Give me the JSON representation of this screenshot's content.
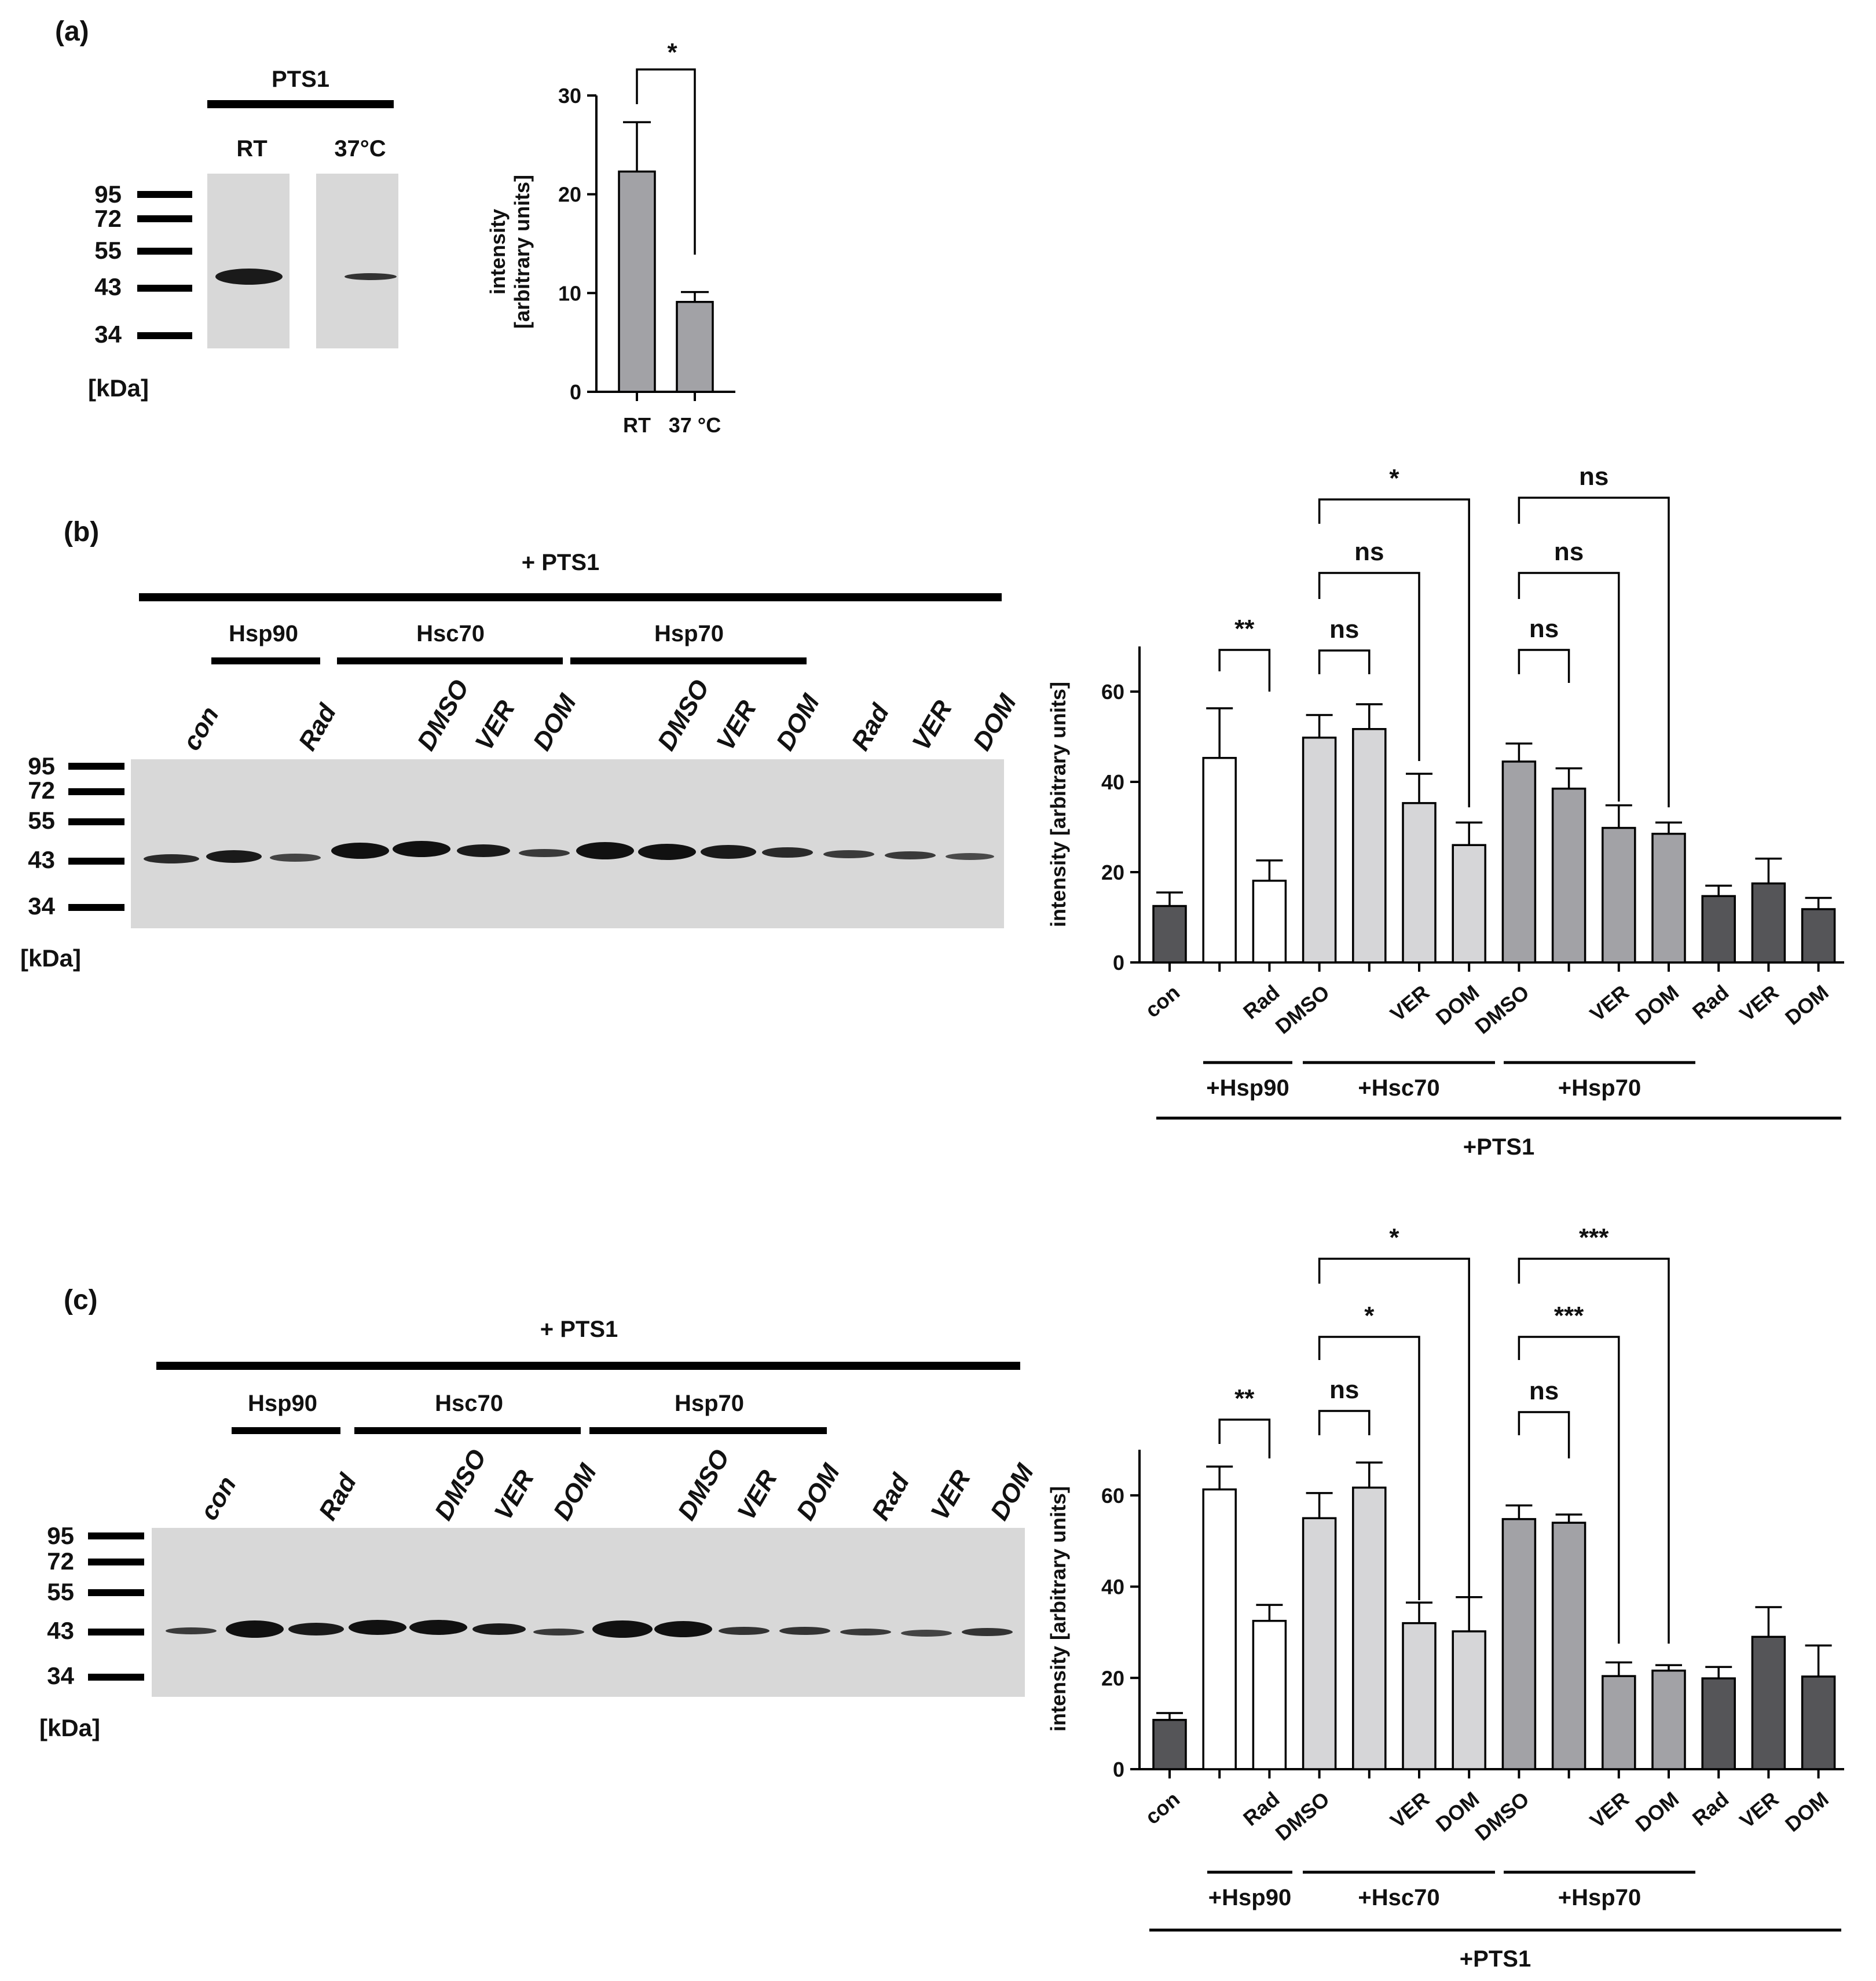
{
  "colors": {
    "white": "#ffffff",
    "light_gray": "#d6d6d8",
    "mid_gray": "#a2a2a6",
    "dark_gray": "#555558",
    "blot_bg": "#d8d8d8",
    "band": "#1a1a1a",
    "ink": "#111111"
  },
  "panel_a": {
    "label": "(a)",
    "blot": {
      "header": "PTS1",
      "lanes": [
        "RT",
        "37°C"
      ],
      "mw_markers": [
        "95",
        "72",
        "55",
        "43",
        "34"
      ],
      "unit": "[kDa]"
    },
    "significance": "*"
  },
  "panel_b": {
    "label": "(b)",
    "blot": {
      "header": "+ PTS1",
      "groups": [
        "Hsp90",
        "Hsc70",
        "Hsp70"
      ],
      "lanes": [
        "con",
        "Rad",
        "DMSO",
        "VER",
        "DOM",
        "DMSO",
        "VER",
        "DOM",
        "Rad",
        "VER",
        "DOM"
      ],
      "mw_markers": [
        "95",
        "72",
        "55",
        "43",
        "34"
      ],
      "unit": "[kDa]"
    },
    "groups_below": [
      "+Hsp90",
      "+Hsc70",
      "+Hsp70"
    ],
    "overall_label": "+PTS1",
    "significance": [
      "**",
      "ns",
      "ns",
      "*",
      "ns",
      "ns",
      "ns"
    ]
  },
  "panel_c": {
    "label": "(c)",
    "blot": {
      "header": "+ PTS1",
      "groups": [
        "Hsp90",
        "Hsc70",
        "Hsp70"
      ],
      "lanes": [
        "con",
        "Rad",
        "DMSO",
        "VER",
        "DOM",
        "DMSO",
        "VER",
        "DOM",
        "Rad",
        "VER",
        "DOM"
      ],
      "mw_markers": [
        "95",
        "72",
        "55",
        "43",
        "34"
      ],
      "unit": "[kDa]"
    },
    "groups_below": [
      "+Hsp90",
      "+Hsc70",
      "+Hsp70"
    ],
    "overall_label": "+PTS1",
    "significance": [
      "**",
      "ns",
      "*",
      "*",
      "ns",
      "***",
      "***"
    ]
  },
  "chart_data": [
    {
      "type": "bar",
      "panel": "(a)",
      "title": "",
      "xlabel": "",
      "ylabel": "intensity [arbitrary units]",
      "ylabel_lines": [
        "intensity",
        "[arbitrary units]"
      ],
      "categories": [
        "RT",
        "37 °C"
      ],
      "values": [
        22.3,
        9.1
      ],
      "errors": [
        5.0,
        1.0
      ],
      "fills": [
        "mid_gray",
        "mid_gray"
      ],
      "ylim": [
        0,
        30
      ],
      "yticks": [
        0,
        10,
        20,
        30
      ],
      "grid": false
    },
    {
      "type": "bar",
      "panel": "(b)",
      "title": "",
      "xlabel": "",
      "ylabel": "intensity [arbitrary units]",
      "categories": [
        "con",
        "",
        "Rad",
        "DMSO",
        "",
        "VER",
        "DOM",
        "DMSO",
        "",
        "VER",
        "DOM",
        "Rad",
        "VER",
        "DOM"
      ],
      "values": [
        12.5,
        45.3,
        18.1,
        49.8,
        51.7,
        35.3,
        26.0,
        44.5,
        38.5,
        29.8,
        28.5,
        14.7,
        17.5,
        11.8
      ],
      "errors": [
        3.0,
        11.0,
        4.5,
        5.0,
        5.5,
        6.5,
        5.0,
        4.0,
        4.5,
        5.0,
        2.5,
        2.3,
        5.5,
        2.5
      ],
      "fills": [
        "dark_gray",
        "white",
        "white",
        "light_gray",
        "light_gray",
        "light_gray",
        "light_gray",
        "mid_gray",
        "mid_gray",
        "mid_gray",
        "mid_gray",
        "dark_gray",
        "dark_gray",
        "dark_gray"
      ],
      "ylim": [
        0,
        70
      ],
      "yticks": [
        0,
        20,
        40,
        60
      ],
      "grid": false
    },
    {
      "type": "bar",
      "panel": "(c)",
      "title": "",
      "xlabel": "",
      "ylabel": "intensity [arbitrary units]",
      "categories": [
        "con",
        "",
        "Rad",
        "DMSO",
        "",
        "VER",
        "DOM",
        "DMSO",
        "",
        "VER",
        "DOM",
        "Rad",
        "VER",
        "DOM"
      ],
      "values": [
        10.8,
        61.3,
        32.5,
        55.0,
        61.7,
        32.0,
        30.2,
        54.8,
        54.0,
        20.4,
        21.6,
        19.9,
        29.0,
        20.3
      ],
      "errors": [
        1.5,
        5.0,
        3.5,
        5.5,
        5.5,
        4.5,
        7.5,
        3.0,
        1.8,
        3.0,
        1.2,
        2.5,
        6.5,
        6.8
      ],
      "fills": [
        "dark_gray",
        "white",
        "white",
        "light_gray",
        "light_gray",
        "light_gray",
        "light_gray",
        "mid_gray",
        "mid_gray",
        "mid_gray",
        "mid_gray",
        "dark_gray",
        "dark_gray",
        "dark_gray"
      ],
      "ylim": [
        0,
        70
      ],
      "yticks": [
        0,
        20,
        40,
        60
      ],
      "grid": false
    }
  ]
}
